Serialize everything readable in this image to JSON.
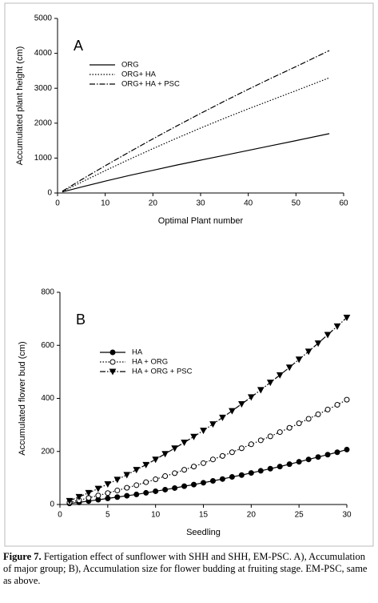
{
  "chart_data": [
    {
      "type": "line",
      "panel_label": "A",
      "xlabel": "Optimal Plant number",
      "ylabel": "Accumulated plant height (cm)",
      "x": [
        1,
        5,
        10,
        15,
        20,
        25,
        30,
        35,
        40,
        45,
        50,
        57
      ],
      "series": [
        {
          "name": "ORG",
          "color": "#000000",
          "dash": "solid",
          "values": [
            30,
            170,
            340,
            500,
            650,
            800,
            940,
            1080,
            1220,
            1360,
            1500,
            1700
          ]
        },
        {
          "name": "ORG+ HA",
          "color": "#000000",
          "dash": "dotted",
          "values": [
            40,
            310,
            640,
            960,
            1270,
            1570,
            1860,
            2140,
            2410,
            2670,
            2930,
            3300
          ]
        },
        {
          "name": "ORG+ HA + PSC",
          "color": "#000000",
          "dash": "dashdot",
          "values": [
            50,
            380,
            780,
            1170,
            1550,
            1920,
            2280,
            2630,
            2970,
            3300,
            3620,
            4080
          ]
        }
      ],
      "xlim": [
        0,
        60
      ],
      "xticks": [
        0,
        10,
        20,
        30,
        40,
        50,
        60
      ],
      "ylim": [
        0,
        5000
      ],
      "yticks": [
        0,
        1000,
        2000,
        3000,
        4000,
        5000
      ],
      "legend": "upper left"
    },
    {
      "type": "line",
      "panel_label": "B",
      "xlabel": "Seedling",
      "ylabel": "Accumulated flower bud (cm)",
      "x": [
        1,
        2,
        3,
        4,
        5,
        6,
        7,
        8,
        9,
        10,
        11,
        12,
        13,
        14,
        15,
        16,
        17,
        18,
        19,
        20,
        21,
        22,
        23,
        24,
        25,
        26,
        27,
        28,
        29,
        30
      ],
      "series": [
        {
          "name": "HA",
          "color": "#000000",
          "dash": "solid",
          "marker": "filled-circle",
          "values": [
            4,
            8,
            13,
            18,
            23,
            28,
            33,
            38,
            44,
            50,
            56,
            62,
            69,
            75,
            82,
            89,
            96,
            104,
            111,
            119,
            127,
            135,
            143,
            152,
            161,
            170,
            179,
            188,
            197,
            207
          ]
        },
        {
          "name": "HA + ORG",
          "color": "#000000",
          "dash": "dotted",
          "marker": "open-circle",
          "values": [
            8,
            16,
            25,
            34,
            43,
            53,
            63,
            73,
            84,
            95,
            107,
            118,
            131,
            143,
            156,
            170,
            183,
            197,
            212,
            227,
            242,
            257,
            273,
            289,
            306,
            323,
            340,
            358,
            376,
            395
          ]
        },
        {
          "name": "HA + ORG + PSC",
          "color": "#000000",
          "dash": "dashdot",
          "marker": "filled-triangle-down",
          "values": [
            14,
            29,
            44,
            60,
            77,
            94,
            112,
            131,
            150,
            170,
            191,
            212,
            234,
            256,
            279,
            303,
            328,
            353,
            379,
            405,
            432,
            460,
            488,
            517,
            547,
            577,
            608,
            640,
            672,
            705
          ]
        }
      ],
      "xlim": [
        0,
        30
      ],
      "xticks": [
        0,
        5,
        10,
        15,
        20,
        25,
        30
      ],
      "ylim": [
        0,
        800
      ],
      "yticks": [
        0,
        200,
        400,
        600,
        800
      ],
      "legend": "upper left"
    }
  ],
  "caption": {
    "label": "Figure 7.",
    "text": "Fertigation effect of sunflower with SHH and SHH, EM-PSC.  A), Accumulation of major group; B), Accumulation size for flower budding at fruiting stage. EM-PSC, same as above."
  }
}
